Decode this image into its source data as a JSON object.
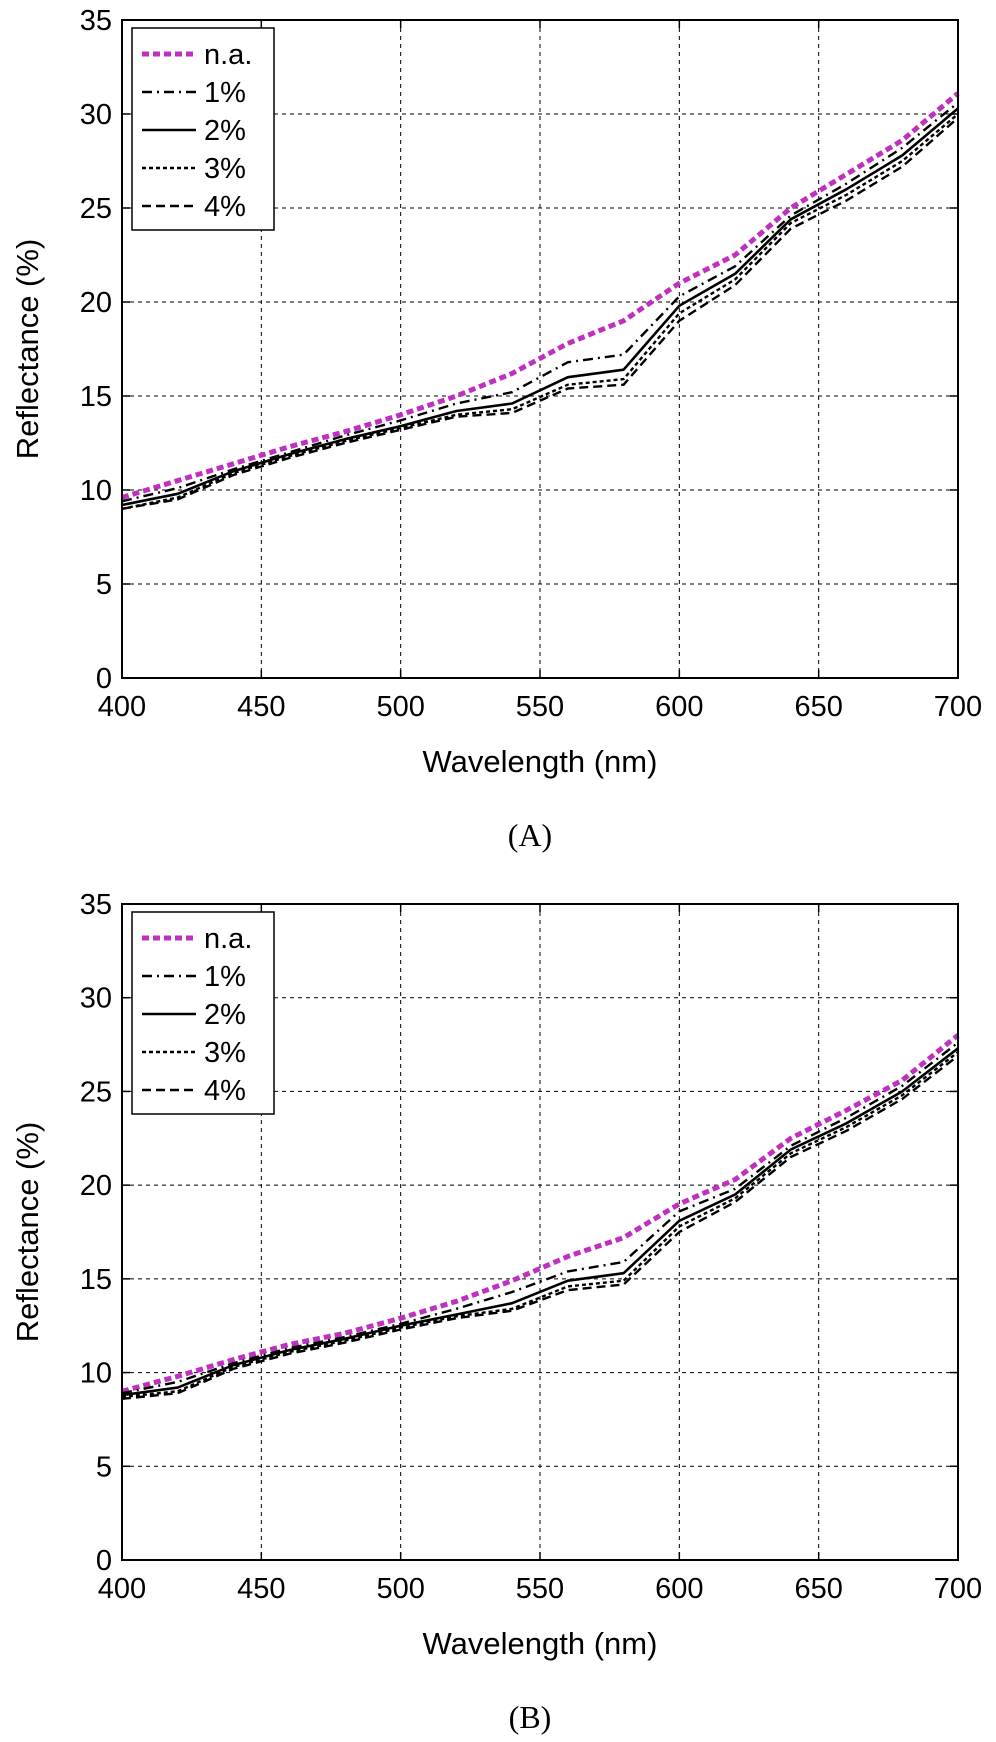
{
  "chart_data": [
    {
      "type": "line",
      "panel_label": "(A)",
      "xlabel": "Wavelength (nm)",
      "ylabel": "Reflectance (%)",
      "xlim": [
        400,
        700
      ],
      "ylim": [
        0,
        35
      ],
      "xticks": [
        400,
        450,
        500,
        550,
        600,
        650,
        700
      ],
      "yticks": [
        0,
        5,
        10,
        15,
        20,
        25,
        30,
        35
      ],
      "grid": true,
      "legend_position": "top-left",
      "x": [
        400,
        420,
        440,
        460,
        480,
        500,
        520,
        540,
        560,
        580,
        600,
        620,
        640,
        660,
        680,
        700
      ],
      "series": [
        {
          "name": "n.a.",
          "color": "#c030c0",
          "style": "dotted-thick",
          "values": [
            9.6,
            10.5,
            11.4,
            12.3,
            13.1,
            14.0,
            15.0,
            16.2,
            17.8,
            19.0,
            21.0,
            22.5,
            25.0,
            26.8,
            28.6,
            31.1
          ]
        },
        {
          "name": "1%",
          "color": "#000000",
          "style": "dash-dot",
          "values": [
            9.4,
            10.1,
            11.1,
            12.0,
            12.9,
            13.7,
            14.6,
            15.2,
            16.8,
            17.2,
            20.3,
            21.9,
            24.6,
            26.3,
            28.2,
            30.6
          ]
        },
        {
          "name": "2%",
          "color": "#000000",
          "style": "solid",
          "values": [
            9.2,
            9.8,
            11.0,
            11.9,
            12.7,
            13.4,
            14.2,
            14.6,
            16.0,
            16.4,
            19.8,
            21.5,
            24.4,
            26.0,
            27.8,
            30.3
          ]
        },
        {
          "name": "3%",
          "color": "#000000",
          "style": "dotted",
          "values": [
            9.0,
            9.6,
            10.9,
            11.8,
            12.6,
            13.3,
            14.0,
            14.3,
            15.6,
            15.9,
            19.4,
            21.2,
            24.2,
            25.7,
            27.5,
            30.0
          ]
        },
        {
          "name": "4%",
          "color": "#000000",
          "style": "dashed",
          "values": [
            9.0,
            9.5,
            10.8,
            11.7,
            12.5,
            13.2,
            13.9,
            14.1,
            15.4,
            15.6,
            19.0,
            20.9,
            23.9,
            25.4,
            27.2,
            29.8
          ]
        }
      ]
    },
    {
      "type": "line",
      "panel_label": "(B)",
      "xlabel": "Wavelength (nm)",
      "ylabel": "Reflectance (%)",
      "xlim": [
        400,
        700
      ],
      "ylim": [
        0,
        35
      ],
      "xticks": [
        400,
        450,
        500,
        550,
        600,
        650,
        700
      ],
      "yticks": [
        0,
        5,
        10,
        15,
        20,
        25,
        30,
        35
      ],
      "grid": true,
      "legend_position": "top-left",
      "x": [
        400,
        420,
        440,
        460,
        480,
        500,
        520,
        540,
        560,
        580,
        600,
        620,
        640,
        660,
        680,
        700
      ],
      "series": [
        {
          "name": "n.a.",
          "color": "#c030c0",
          "style": "dotted-thick",
          "values": [
            9.0,
            9.8,
            10.7,
            11.5,
            12.1,
            12.9,
            13.8,
            14.9,
            16.2,
            17.2,
            19.0,
            20.3,
            22.5,
            24.0,
            25.6,
            28.0
          ]
        },
        {
          "name": "1%",
          "color": "#000000",
          "style": "dash-dot",
          "values": [
            8.9,
            9.5,
            10.5,
            11.3,
            11.9,
            12.6,
            13.4,
            14.3,
            15.4,
            15.9,
            18.6,
            19.8,
            22.1,
            23.6,
            25.3,
            27.6
          ]
        },
        {
          "name": "2%",
          "color": "#000000",
          "style": "solid",
          "values": [
            8.8,
            9.2,
            10.4,
            11.2,
            11.8,
            12.5,
            13.1,
            13.7,
            14.9,
            15.3,
            18.1,
            19.5,
            21.9,
            23.3,
            25.0,
            27.3
          ]
        },
        {
          "name": "3%",
          "color": "#000000",
          "style": "dotted",
          "values": [
            8.7,
            9.0,
            10.3,
            11.1,
            11.7,
            12.4,
            13.0,
            13.4,
            14.6,
            14.9,
            17.8,
            19.3,
            21.7,
            23.1,
            24.8,
            27.1
          ]
        },
        {
          "name": "4%",
          "color": "#000000",
          "style": "dashed",
          "values": [
            8.6,
            8.9,
            10.2,
            11.0,
            11.6,
            12.3,
            12.9,
            13.3,
            14.4,
            14.7,
            17.5,
            19.1,
            21.5,
            22.9,
            24.6,
            26.9
          ]
        }
      ]
    }
  ]
}
